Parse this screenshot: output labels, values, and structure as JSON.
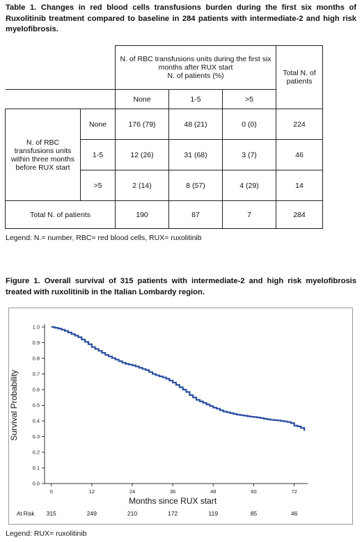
{
  "table": {
    "caption": "Table 1. Changes in red blood cells transfusions burden during the first six months of Ruxolitinib treatment compared to baseline in 284 patients with intermediate-2 and high risk myelofibrosis.",
    "col_group_header": "N. of RBC transfusions units during the first six months after RUX start",
    "col_group_subheader": "N. of patients (%)",
    "col_headers": [
      "None",
      "1-5",
      ">5"
    ],
    "total_header": "Total N. of patients",
    "row_group_header": "N. of RBC transfusions units within three months before RUX start",
    "rows": [
      {
        "label": "None",
        "cells": [
          "176 (79)",
          "48 (21)",
          "0 (0)"
        ],
        "total": "224"
      },
      {
        "label": "1-5",
        "cells": [
          "12 (26)",
          "31 (68)",
          "3 (7)"
        ],
        "total": "46"
      },
      {
        "label": ">5",
        "cells": [
          "2 (14)",
          "8 (57)",
          "4 (29)"
        ],
        "total": "14"
      }
    ],
    "total_row": {
      "label": "Total N. of patients",
      "cells": [
        "190",
        "87",
        "7"
      ],
      "total": "284"
    },
    "legend": "Legend: N.= number, RBC= red blood cells, RUX= ruxolitinib"
  },
  "figure": {
    "caption": "Figure 1. Overall survival of 315 patients with intermediate-2 and high risk myelofibrosis treated with ruxolitinib in the Italian Lombardy region.",
    "legend": "Legend: RUX= ruxolitinib"
  },
  "chart_data": {
    "type": "line",
    "title": "",
    "xlabel": "Months since RUX start",
    "ylabel": "Survival Probability",
    "xlim": [
      -2,
      76
    ],
    "ylim": [
      0,
      1.0
    ],
    "x_ticks": [
      "0",
      "12",
      "24",
      "36",
      "48",
      "60",
      "72"
    ],
    "y_ticks": [
      "0.0",
      "0.1",
      "0.2",
      "0.3",
      "0.4",
      "0.5",
      "0.6",
      "0.7",
      "0.8",
      "0.9",
      "1.0"
    ],
    "line_color": "#2b4fa0",
    "series": [
      {
        "x": [
          0,
          1,
          2,
          3,
          4,
          5,
          6,
          7,
          8,
          9,
          10,
          11,
          12,
          13,
          14,
          15,
          16,
          17,
          18,
          19,
          20,
          21,
          22,
          23,
          24,
          25,
          26,
          27,
          28,
          29,
          30,
          31,
          32,
          33,
          34,
          35,
          36,
          37,
          38,
          39,
          40,
          41,
          42,
          43,
          44,
          45,
          46,
          47,
          48,
          49,
          50,
          51,
          52,
          53,
          54,
          55,
          56,
          57,
          58,
          59,
          60,
          61,
          62,
          63,
          64,
          65,
          66,
          67,
          68,
          69,
          70,
          71,
          72,
          73,
          74,
          75
        ],
        "y": [
          1.0,
          0.995,
          0.99,
          0.983,
          0.975,
          0.965,
          0.955,
          0.945,
          0.935,
          0.92,
          0.905,
          0.89,
          0.872,
          0.86,
          0.848,
          0.835,
          0.822,
          0.812,
          0.802,
          0.792,
          0.782,
          0.772,
          0.765,
          0.76,
          0.755,
          0.748,
          0.74,
          0.732,
          0.725,
          0.712,
          0.7,
          0.692,
          0.685,
          0.678,
          0.67,
          0.658,
          0.645,
          0.63,
          0.615,
          0.6,
          0.585,
          0.565,
          0.55,
          0.535,
          0.525,
          0.515,
          0.505,
          0.495,
          0.485,
          0.478,
          0.468,
          0.46,
          0.455,
          0.45,
          0.445,
          0.44,
          0.437,
          0.434,
          0.43,
          0.427,
          0.425,
          0.422,
          0.418,
          0.414,
          0.41,
          0.407,
          0.405,
          0.403,
          0.4,
          0.397,
          0.393,
          0.386,
          0.37,
          0.365,
          0.355,
          0.337
        ]
      }
    ],
    "at_risk": {
      "label": "At Risk",
      "months": [
        "0",
        "12",
        "24",
        "36",
        "48",
        "60",
        "72"
      ],
      "counts": [
        "315",
        "249",
        "210",
        "172",
        "119",
        "85",
        "46"
      ]
    }
  }
}
